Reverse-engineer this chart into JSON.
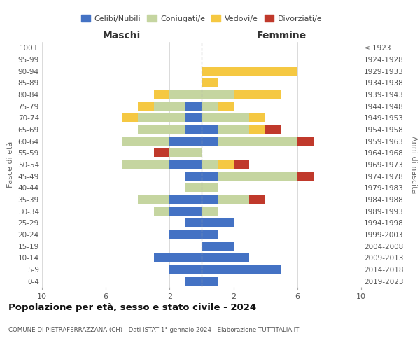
{
  "age_groups": [
    "100+",
    "95-99",
    "90-94",
    "85-89",
    "80-84",
    "75-79",
    "70-74",
    "65-69",
    "60-64",
    "55-59",
    "50-54",
    "45-49",
    "40-44",
    "35-39",
    "30-34",
    "25-29",
    "20-24",
    "15-19",
    "10-14",
    "5-9",
    "0-4"
  ],
  "birth_years": [
    "≤ 1923",
    "1924-1928",
    "1929-1933",
    "1934-1938",
    "1939-1943",
    "1944-1948",
    "1949-1953",
    "1954-1958",
    "1959-1963",
    "1964-1968",
    "1969-1973",
    "1974-1978",
    "1979-1983",
    "1984-1988",
    "1989-1993",
    "1994-1998",
    "1999-2003",
    "2004-2008",
    "2009-2013",
    "2014-2018",
    "2019-2023"
  ],
  "maschi": {
    "celibi": [
      0,
      0,
      0,
      0,
      0,
      1,
      1,
      1,
      2,
      0,
      2,
      1,
      0,
      2,
      2,
      1,
      2,
      0,
      3,
      2,
      1
    ],
    "coniugati": [
      0,
      0,
      0,
      0,
      2,
      2,
      3,
      3,
      3,
      2,
      3,
      0,
      1,
      2,
      1,
      0,
      0,
      0,
      0,
      0,
      0
    ],
    "vedovi": [
      0,
      0,
      0,
      0,
      1,
      1,
      1,
      0,
      0,
      0,
      0,
      0,
      0,
      0,
      0,
      0,
      0,
      0,
      0,
      0,
      0
    ],
    "divorziati": [
      0,
      0,
      0,
      0,
      0,
      0,
      0,
      0,
      0,
      1,
      0,
      0,
      0,
      0,
      0,
      0,
      0,
      0,
      0,
      0,
      0
    ]
  },
  "femmine": {
    "nubili": [
      0,
      0,
      0,
      0,
      0,
      0,
      0,
      1,
      1,
      0,
      0,
      1,
      0,
      1,
      0,
      2,
      1,
      2,
      3,
      5,
      1
    ],
    "coniugate": [
      0,
      0,
      0,
      0,
      2,
      1,
      3,
      2,
      5,
      0,
      1,
      5,
      1,
      2,
      1,
      0,
      0,
      0,
      0,
      0,
      0
    ],
    "vedove": [
      0,
      0,
      6,
      1,
      3,
      1,
      1,
      1,
      0,
      0,
      1,
      0,
      0,
      0,
      0,
      0,
      0,
      0,
      0,
      0,
      0
    ],
    "divorziate": [
      0,
      0,
      0,
      0,
      0,
      0,
      0,
      1,
      1,
      0,
      1,
      1,
      0,
      1,
      0,
      0,
      0,
      0,
      0,
      0,
      0
    ]
  },
  "colors": {
    "celibi_nubili": "#4472C4",
    "coniugati": "#C5D5A0",
    "vedovi": "#F5C842",
    "divorziati": "#C0392B"
  },
  "title": "Popolazione per età, sesso e stato civile - 2024",
  "subtitle": "COMUNE DI PIETRAFERRAZZANA (CH) - Dati ISTAT 1° gennaio 2024 - Elaborazione TUTTITALIA.IT",
  "xlabel_left": "Maschi",
  "xlabel_right": "Femmine",
  "ylabel_left": "Fasce di età",
  "ylabel_right": "Anni di nascita",
  "xmax": 10,
  "xticks": [
    -10,
    -6,
    -2,
    2,
    6,
    10
  ],
  "legend_labels": [
    "Celibi/Nubili",
    "Coniugati/e",
    "Vedovi/e",
    "Divorziati/e"
  ]
}
